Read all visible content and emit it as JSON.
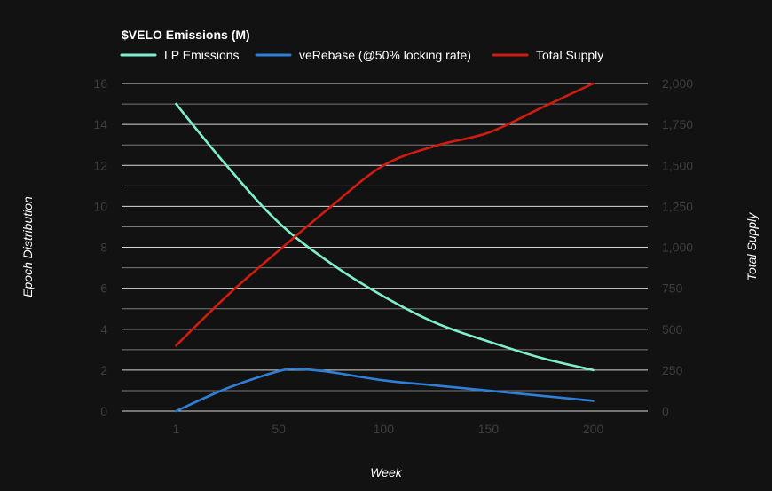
{
  "chart_data": {
    "type": "line",
    "title": "$VELO Emissions (M)",
    "xlabel": "Week",
    "ylabel_left": "Epoch Distribution",
    "ylabel_right": "Total Supply",
    "x_ticks": [
      1,
      50,
      100,
      150,
      200
    ],
    "x_tick_labels": [
      "1",
      "50",
      "100",
      "150",
      "200"
    ],
    "xlim": [
      -25,
      226
    ],
    "ylim_left": [
      0,
      16
    ],
    "y_ticks_left": [
      0,
      2,
      4,
      6,
      8,
      10,
      12,
      14,
      16
    ],
    "y_tick_labels_left": [
      "0",
      "2",
      "4",
      "6",
      "8",
      "10",
      "12",
      "14",
      "16"
    ],
    "ylim_right": [
      0,
      2000
    ],
    "y_ticks_right": [
      0,
      250,
      500,
      750,
      1000,
      1250,
      1500,
      1750,
      2000
    ],
    "y_tick_labels_right": [
      "0",
      "250",
      "500",
      "750",
      "1,000",
      "1,250",
      "1,500",
      "1,750",
      "2,000"
    ],
    "grid": true,
    "legend_position": "top-left",
    "colors": {
      "background": "#121212",
      "lp": "#7ef0d0",
      "verebase": "#2e7fd8",
      "supply": "#d01c10"
    },
    "series": [
      {
        "name": "LP Emissions",
        "axis": "left",
        "color": "#7ef0d0",
        "x": [
          1,
          25,
          50,
          75,
          100,
          125,
          150,
          175,
          200
        ],
        "y": [
          15,
          12,
          9.2,
          7.2,
          5.6,
          4.3,
          3.4,
          2.6,
          2.0
        ]
      },
      {
        "name": "veRebase (@50% locking rate)",
        "axis": "left",
        "color": "#2e7fd8",
        "x": [
          1,
          25,
          50,
          60,
          75,
          100,
          125,
          150,
          175,
          200
        ],
        "y": [
          0,
          1.1,
          1.95,
          2.05,
          1.9,
          1.5,
          1.25,
          1.0,
          0.75,
          0.5
        ]
      },
      {
        "name": "Total Supply",
        "axis": "right",
        "color": "#d01c10",
        "x": [
          1,
          25,
          50,
          75,
          100,
          125,
          150,
          175,
          200
        ],
        "y": [
          400,
          700,
          980,
          1250,
          1500,
          1620,
          1700,
          1850,
          2000
        ]
      }
    ]
  }
}
